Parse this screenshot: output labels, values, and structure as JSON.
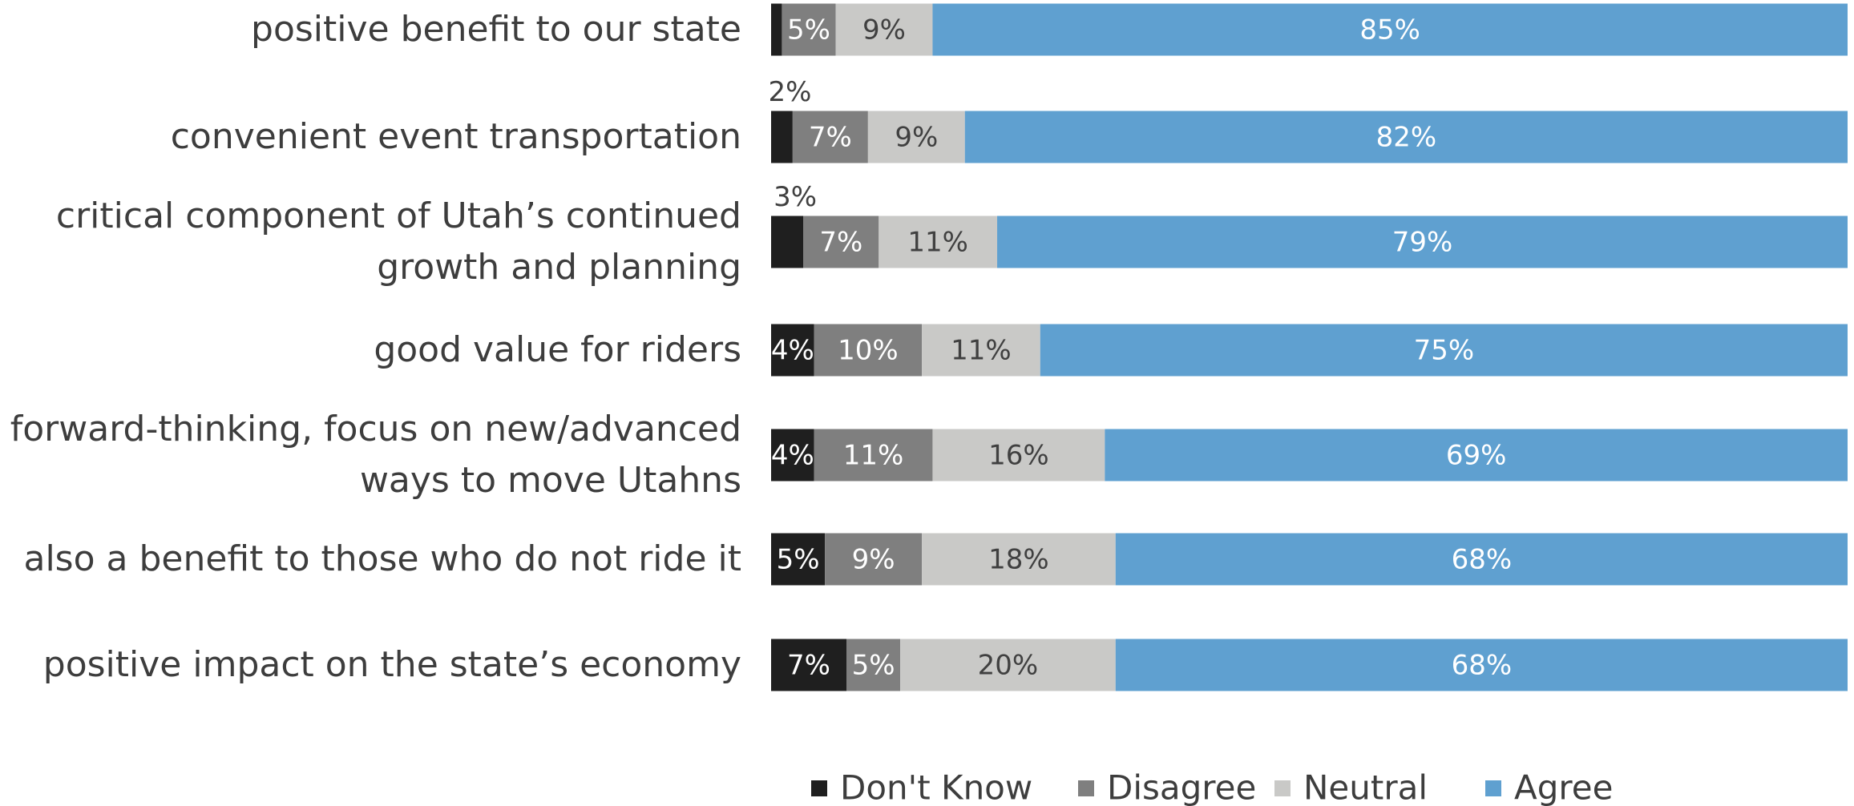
{
  "chart_data": {
    "type": "stacked-bar-horizontal",
    "categories": [
      "positive benefit to our state",
      "convenient event transportation",
      "critical component of Utah’s continued\ngrowth and planning",
      "good value for riders",
      "forward-thinking, focus on new/advanced\nways to move Utahns",
      "also a benefit to those who do not ride it",
      "positive impact on the state’s economy"
    ],
    "xlim": [
      0,
      100
    ],
    "legend": "bottom",
    "series": [
      {
        "name": "Don't Know",
        "color": "#1f1f1f",
        "label_color": "#ffffff",
        "values": [
          1,
          2,
          3,
          4,
          4,
          5,
          7
        ],
        "value_labels": [
          null,
          "2%",
          "3%",
          "4%",
          "4%",
          "5%",
          "7%"
        ]
      },
      {
        "name": "Disagree",
        "color": "#7f7f7f",
        "label_color": "#ffffff",
        "values": [
          5,
          7,
          7,
          10,
          11,
          9,
          5
        ],
        "value_labels": [
          "5%",
          "7%",
          "7%",
          "10%",
          "11%",
          "9%",
          "5%"
        ]
      },
      {
        "name": "Neutral",
        "color": "#c9c9c7",
        "label_color": "#404040",
        "values": [
          9,
          9,
          11,
          11,
          16,
          18,
          20
        ],
        "value_labels": [
          "9%",
          "9%",
          "11%",
          "11%",
          "16%",
          "18%",
          "20%"
        ]
      },
      {
        "name": "Agree",
        "color": "#5fa0d0",
        "label_color": "#ffffff",
        "values": [
          85,
          82,
          79,
          75,
          69,
          68,
          68
        ],
        "value_labels": [
          "85%",
          "82%",
          "79%",
          "75%",
          "69%",
          "68%",
          "68%"
        ]
      }
    ]
  }
}
